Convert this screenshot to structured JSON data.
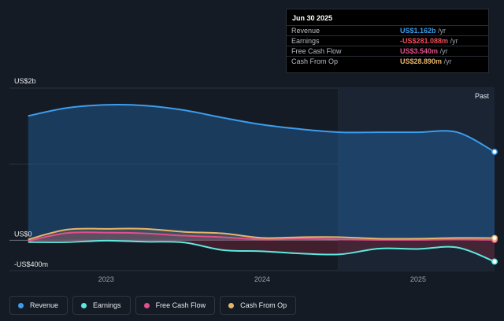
{
  "tooltip": {
    "date": "Jun 30 2025",
    "rows": [
      {
        "label": "Revenue",
        "value": "US$1.162b",
        "unit": "/yr",
        "color": "#3b9ded"
      },
      {
        "label": "Earnings",
        "value": "-US$281.088m",
        "unit": "/yr",
        "color": "#f04b5a"
      },
      {
        "label": "Free Cash Flow",
        "value": "US$3.540m",
        "unit": "/yr",
        "color": "#e0508a"
      },
      {
        "label": "Cash From Op",
        "value": "US$28.890m",
        "unit": "/yr",
        "color": "#e8b46a"
      }
    ]
  },
  "legend": [
    {
      "label": "Revenue",
      "color": "#3b9ded"
    },
    {
      "label": "Earnings",
      "color": "#5ee8e0"
    },
    {
      "label": "Free Cash Flow",
      "color": "#e0508a"
    },
    {
      "label": "Cash From Op",
      "color": "#e8b46a"
    }
  ],
  "chart_data": {
    "type": "area",
    "y_unit": "US$ m",
    "ylim": [
      -400,
      2000
    ],
    "y_tick_labels": [
      {
        "value": 2000,
        "label": "US$2b"
      },
      {
        "value": 0,
        "label": "US$0"
      },
      {
        "value": -400,
        "label": "-US$400m"
      }
    ],
    "x_tick_labels": [
      {
        "value": 2023,
        "label": "2023"
      },
      {
        "value": 2024,
        "label": "2024"
      },
      {
        "value": 2025,
        "label": "2025"
      }
    ],
    "xlim": [
      2022.38,
      2025.49
    ],
    "past_start": 2024.49,
    "past_label": "Past",
    "x": [
      2022.5,
      2022.75,
      2023.0,
      2023.25,
      2023.5,
      2023.75,
      2024.0,
      2024.25,
      2024.5,
      2024.75,
      2025.0,
      2025.25,
      2025.49
    ],
    "series": [
      {
        "name": "Revenue",
        "color": "#3b9ded",
        "values": [
          1635,
          1740,
          1780,
          1770,
          1710,
          1610,
          1520,
          1460,
          1420,
          1420,
          1420,
          1420,
          1162
        ]
      },
      {
        "name": "Earnings",
        "color": "#5ee8e0",
        "values": [
          -25,
          -25,
          -5,
          -20,
          -30,
          -130,
          -145,
          -175,
          -185,
          -110,
          -115,
          -95,
          -281
        ]
      },
      {
        "name": "Free Cash Flow",
        "color": "#e0508a",
        "values": [
          -10,
          95,
          100,
          90,
          60,
          40,
          10,
          20,
          10,
          5,
          5,
          10,
          4
        ]
      },
      {
        "name": "Cash From Op",
        "color": "#e8b46a",
        "values": [
          10,
          140,
          150,
          150,
          110,
          90,
          30,
          40,
          40,
          20,
          20,
          30,
          29
        ]
      }
    ],
    "grid": true,
    "legend_position": "bottom-left"
  }
}
